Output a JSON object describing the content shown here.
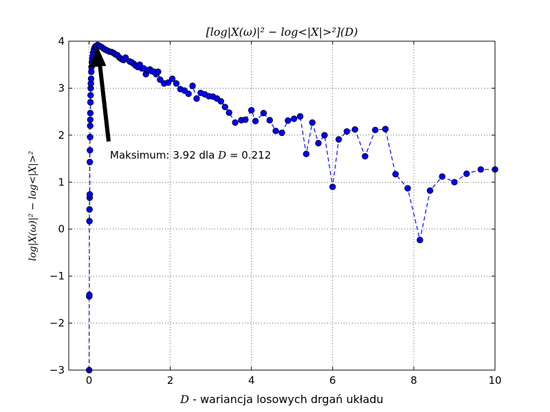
{
  "chart_data": {
    "type": "line",
    "title": "[log|X(ω)|² − log<|X|>²](D)",
    "xlabel_symbol": "D",
    "xlabel_text": " - wariancja losowych drgań układu",
    "ylabel": "log|X(ω)|² − log<|X|>²",
    "xlim": [
      -0.5,
      10
    ],
    "ylim": [
      -3,
      4
    ],
    "xticks": [
      "0",
      "2",
      "4",
      "6",
      "8",
      "10"
    ],
    "yticks": [
      "−3",
      "−2",
      "−1",
      "0",
      "1",
      "2",
      "3",
      "4"
    ],
    "grid": true,
    "line_style": "dashed",
    "marker": "circle",
    "color": "#0000ff",
    "annotation": {
      "text_prefix": "Maksimum: 3.92 dla ",
      "text_symbol": "D",
      "text_suffix": " = 0.212",
      "x": 0.212,
      "y": 3.92
    },
    "series": [
      {
        "x": [
          0.003,
          0.005,
          0.008,
          0.01,
          0.012,
          0.015,
          0.018,
          0.02,
          0.022,
          0.025,
          0.028,
          0.03,
          0.032,
          0.035,
          0.038,
          0.04,
          0.045,
          0.05,
          0.055,
          0.06,
          0.07,
          0.08,
          0.09,
          0.1,
          0.12,
          0.14,
          0.16,
          0.18,
          0.212,
          0.25,
          0.3,
          0.35,
          0.4,
          0.45,
          0.5,
          0.55,
          0.6,
          0.65,
          0.7,
          0.75,
          0.8,
          0.85,
          0.9,
          1.0,
          1.05,
          1.1,
          1.15,
          1.2,
          1.25,
          1.3,
          1.35,
          1.4,
          1.45,
          1.5,
          1.55,
          1.6,
          1.65,
          1.7,
          1.75,
          1.85,
          1.95,
          2.05,
          2.15,
          2.25,
          2.35,
          2.45,
          2.55,
          2.65,
          2.75,
          2.85,
          2.95,
          3.05,
          3.15,
          3.25,
          3.35,
          3.45,
          3.6,
          3.75,
          3.85,
          4.0,
          4.1,
          4.3,
          4.45,
          4.6,
          4.75,
          4.9,
          5.05,
          5.2,
          5.35,
          5.5,
          5.65,
          5.8,
          6.0,
          6.15,
          6.35,
          6.55,
          6.8,
          7.05,
          7.3,
          7.55,
          7.85,
          8.15,
          8.4,
          8.7,
          9.0,
          9.3,
          9.65,
          10.0
        ],
        "y": [
          -3.0,
          -1.43,
          -1.4,
          0.17,
          0.42,
          0.67,
          0.74,
          1.43,
          1.68,
          1.96,
          2.2,
          2.33,
          2.47,
          2.7,
          2.85,
          3.0,
          3.1,
          3.2,
          3.35,
          3.45,
          3.55,
          3.62,
          3.68,
          3.75,
          3.82,
          3.87,
          3.89,
          3.9,
          3.92,
          3.9,
          3.88,
          3.85,
          3.82,
          3.8,
          3.78,
          3.77,
          3.75,
          3.72,
          3.7,
          3.65,
          3.62,
          3.6,
          3.65,
          3.57,
          3.55,
          3.52,
          3.48,
          3.45,
          3.5,
          3.42,
          3.42,
          3.3,
          3.38,
          3.4,
          3.36,
          3.35,
          3.3,
          3.35,
          3.18,
          3.1,
          3.12,
          3.2,
          3.1,
          2.98,
          2.95,
          2.88,
          3.05,
          2.78,
          2.9,
          2.87,
          2.83,
          2.82,
          2.78,
          2.72,
          2.6,
          2.48,
          2.27,
          2.32,
          2.33,
          2.53,
          2.3,
          2.47,
          2.32,
          2.09,
          2.05,
          2.31,
          2.35,
          2.4,
          1.6,
          2.27,
          1.83,
          2.0,
          0.9,
          1.91,
          2.08,
          2.12,
          1.55,
          2.11,
          2.13,
          1.17,
          0.87,
          -0.23,
          0.82,
          1.12,
          1.0,
          1.18,
          1.27,
          1.27
        ]
      }
    ]
  }
}
